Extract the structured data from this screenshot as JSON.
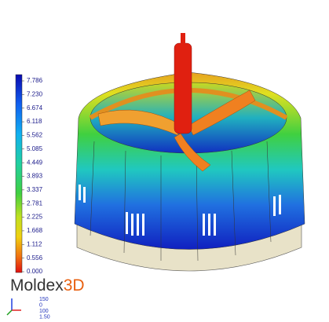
{
  "legend": {
    "labels": [
      "7.786",
      "7.230",
      "6.674",
      "6.118",
      "5.562",
      "5.085",
      "4.449",
      "3.893",
      "3.337",
      "2.781",
      "2.225",
      "1.668",
      "1.112",
      "0.556",
      "0.000"
    ]
  },
  "logo": {
    "text": "Moldex",
    "accent": "3D"
  },
  "info": [
    "150",
    "0",
    "100",
    "1.50"
  ]
}
